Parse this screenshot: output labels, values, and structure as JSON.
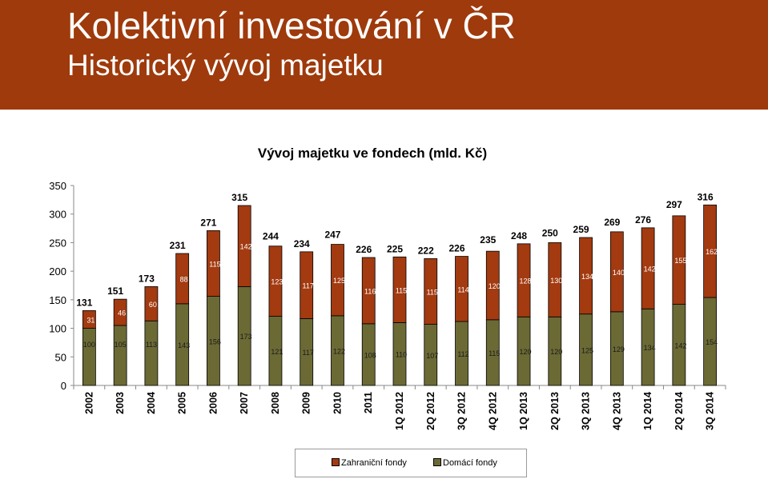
{
  "header": {
    "title": "Kolektivní investování v ČR",
    "subtitle": "Historický vývoj majetku"
  },
  "colors": {
    "header_bg": "#9e3a0c",
    "foreign": "#a33a10",
    "domestic": "#6b6a35"
  },
  "chart_data": {
    "type": "bar",
    "stacked": true,
    "title": "Vývoj majetku ve fondech (mld. Kč)",
    "categories": [
      "2002",
      "2003",
      "2004",
      "2005",
      "2006",
      "2007",
      "2008",
      "2009",
      "2010",
      "2011",
      "1Q 2012",
      "2Q 2012",
      "3Q 2012",
      "4Q 2012",
      "1Q 2013",
      "2Q 2013",
      "3Q 2013",
      "4Q 2013",
      "1Q 2014",
      "2Q 2014",
      "3Q 2014"
    ],
    "series": [
      {
        "name": "Domácí fondy",
        "values": [
          100,
          105,
          113,
          143,
          156,
          173,
          121,
          117,
          122,
          108,
          110,
          107,
          112,
          115,
          120,
          120,
          125,
          129,
          134,
          142,
          154
        ]
      },
      {
        "name": "Zahraniční fondy",
        "values": [
          31,
          46,
          60,
          88,
          115,
          142,
          123,
          117,
          125,
          116,
          115,
          115,
          114,
          120,
          128,
          130,
          134,
          140,
          142,
          155,
          162
        ]
      }
    ],
    "totals": [
      131,
      151,
      173,
      231,
      271,
      315,
      244,
      234,
      247,
      226,
      225,
      222,
      226,
      235,
      248,
      250,
      259,
      269,
      276,
      297,
      316
    ],
    "ylim": [
      0,
      350
    ],
    "yticks": [
      0,
      50,
      100,
      150,
      200,
      250,
      300,
      350
    ],
    "legend": {
      "position": "bottom",
      "entries": [
        "Zahraniční fondy",
        "Domácí fondy"
      ]
    }
  }
}
